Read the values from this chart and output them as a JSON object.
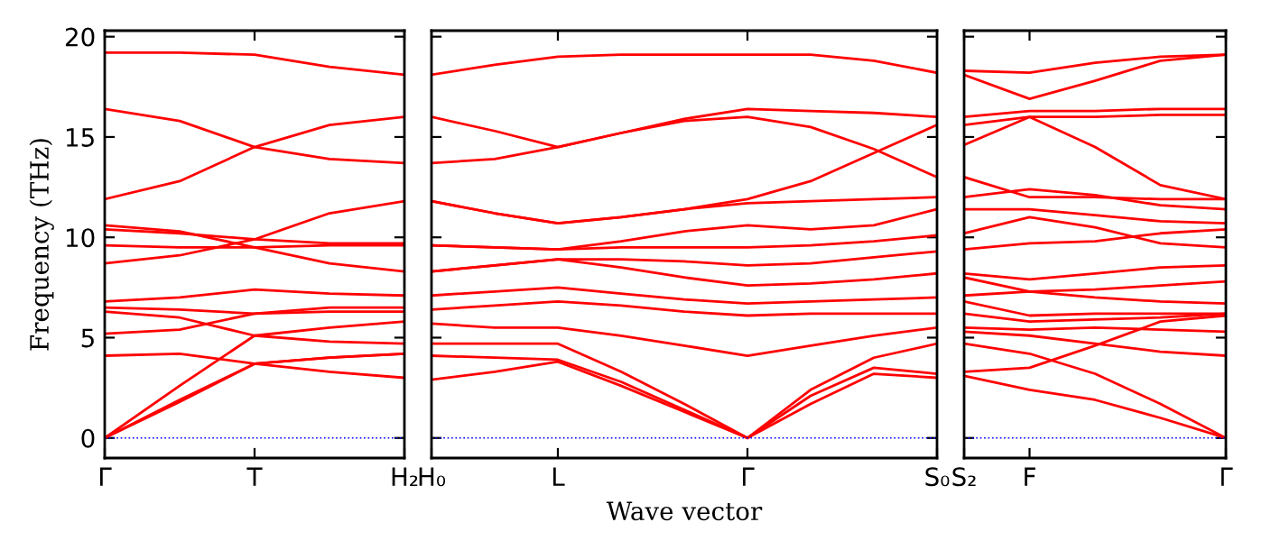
{
  "chart_data": [
    {
      "type": "line",
      "ylabel": "Frequency (THz)",
      "categories": [
        "Γ",
        null,
        "T",
        null,
        "H₂"
      ],
      "ylim": [
        -1,
        20.3
      ],
      "yticks": [
        0,
        5,
        10,
        15,
        20
      ],
      "grid": false,
      "line_style": "solid",
      "marker": "none",
      "ref_lines": [
        {
          "axis": "y",
          "value": 0,
          "label": null,
          "color": "#0000ff",
          "line_style": "dotted"
        }
      ],
      "series": [
        {
          "color": "#ff0000",
          "values": [
            19.2,
            19.2,
            19.1,
            18.5,
            18.1
          ]
        },
        {
          "color": "#ff0000",
          "values": [
            16.4,
            15.8,
            14.5,
            13.9,
            13.7
          ]
        },
        {
          "color": "#ff0000",
          "values": [
            11.9,
            12.8,
            14.5,
            15.6,
            16.0
          ]
        },
        {
          "color": "#ff0000",
          "values": [
            10.6,
            10.3,
            9.5,
            8.7,
            8.3
          ]
        },
        {
          "color": "#ff0000",
          "values": [
            10.4,
            10.2,
            9.9,
            9.7,
            9.7
          ]
        },
        {
          "color": "#ff0000",
          "values": [
            9.6,
            9.5,
            9.5,
            9.6,
            9.6
          ]
        },
        {
          "color": "#ff0000",
          "values": [
            8.7,
            9.1,
            9.9,
            11.2,
            11.8
          ]
        },
        {
          "color": "#ff0000",
          "values": [
            6.8,
            7.0,
            7.4,
            7.2,
            7.1
          ]
        },
        {
          "color": "#ff0000",
          "values": [
            6.5,
            6.4,
            6.2,
            6.5,
            6.5
          ]
        },
        {
          "color": "#ff0000",
          "values": [
            6.3,
            6.0,
            5.1,
            5.5,
            5.8
          ]
        },
        {
          "color": "#ff0000",
          "values": [
            5.2,
            5.4,
            6.2,
            6.3,
            6.3
          ]
        },
        {
          "color": "#ff0000",
          "values": [
            4.1,
            4.2,
            3.7,
            4.0,
            4.2
          ]
        },
        {
          "color": "#ff0000",
          "values": [
            0,
            2.6,
            5.1,
            4.8,
            4.7
          ]
        },
        {
          "color": "#ff0000",
          "values": [
            0,
            1.9,
            3.7,
            4.0,
            4.2
          ]
        },
        {
          "color": "#ff0000",
          "values": [
            0,
            1.8,
            3.7,
            3.3,
            3.0
          ]
        }
      ]
    },
    {
      "type": "line",
      "xlabel": "Wave vector",
      "categories": [
        "H₀",
        null,
        "L",
        null,
        null,
        "Γ",
        null,
        null,
        "S₀"
      ],
      "ylim": [
        -1,
        20.3
      ],
      "yticks": [
        {
          "value": 0,
          "label": null
        },
        {
          "value": 5,
          "label": null
        },
        {
          "value": 10,
          "label": null
        },
        {
          "value": 15,
          "label": null
        },
        {
          "value": 20,
          "label": null
        }
      ],
      "tick_labels": "x",
      "grid": false,
      "line_style": "solid",
      "marker": "none",
      "ref_lines": [
        {
          "axis": "y",
          "value": 0,
          "label": null,
          "color": "#0000ff",
          "line_style": "dotted"
        }
      ],
      "series": [
        {
          "color": "#ff0000",
          "values": [
            18.1,
            18.6,
            19.0,
            19.1,
            19.1,
            19.1,
            19.1,
            18.8,
            18.2
          ]
        },
        {
          "color": "#ff0000",
          "values": [
            16.0,
            15.3,
            14.5,
            15.2,
            15.9,
            16.4,
            16.3,
            16.2,
            16.0
          ]
        },
        {
          "color": "#ff0000",
          "values": [
            13.7,
            13.9,
            14.5,
            15.2,
            15.8,
            16.0,
            15.5,
            14.4,
            13.0
          ]
        },
        {
          "color": "#ff0000",
          "values": [
            11.8,
            11.2,
            10.7,
            11.0,
            11.4,
            11.9,
            12.8,
            14.2,
            15.6
          ]
        },
        {
          "color": "#ff0000",
          "values": [
            11.8,
            11.2,
            10.7,
            11.0,
            11.4,
            11.7,
            11.8,
            11.9,
            12.0
          ]
        },
        {
          "color": "#ff0000",
          "values": [
            9.6,
            9.5,
            9.4,
            9.8,
            10.3,
            10.6,
            10.4,
            10.6,
            11.4
          ]
        },
        {
          "color": "#ff0000",
          "values": [
            9.6,
            9.5,
            9.4,
            9.5,
            9.5,
            9.5,
            9.6,
            9.8,
            10.1
          ]
        },
        {
          "color": "#ff0000",
          "values": [
            8.3,
            8.6,
            8.9,
            8.9,
            8.8,
            8.6,
            8.7,
            9.0,
            9.3
          ]
        },
        {
          "color": "#ff0000",
          "values": [
            8.3,
            8.6,
            8.9,
            8.5,
            8.0,
            7.6,
            7.7,
            7.9,
            8.2
          ]
        },
        {
          "color": "#ff0000",
          "values": [
            7.1,
            7.3,
            7.5,
            7.2,
            6.9,
            6.7,
            6.8,
            6.9,
            7.0
          ]
        },
        {
          "color": "#ff0000",
          "values": [
            6.4,
            6.6,
            6.8,
            6.6,
            6.3,
            6.1,
            6.2,
            6.2,
            6.2
          ]
        },
        {
          "color": "#ff0000",
          "values": [
            5.7,
            5.5,
            5.5,
            5.1,
            4.6,
            4.1,
            4.6,
            5.1,
            5.5
          ]
        },
        {
          "color": "#ff0000",
          "values": [
            4.7,
            4.7,
            4.7,
            3.3,
            1.7,
            0,
            2.4,
            4.0,
            4.7
          ]
        },
        {
          "color": "#ff0000",
          "values": [
            4.1,
            4.0,
            3.9,
            2.8,
            1.4,
            0,
            2.1,
            3.5,
            3.2
          ]
        },
        {
          "color": "#ff0000",
          "values": [
            2.9,
            3.3,
            3.8,
            2.6,
            1.3,
            0,
            1.7,
            3.2,
            3.0
          ]
        }
      ]
    },
    {
      "type": "line",
      "categories": [
        "S₂",
        "F",
        null,
        null,
        "Γ"
      ],
      "ylim": [
        -1,
        20.3
      ],
      "yticks": [
        {
          "value": 0,
          "label": null
        },
        {
          "value": 5,
          "label": null
        },
        {
          "value": 10,
          "label": null
        },
        {
          "value": 15,
          "label": null
        },
        {
          "value": 20,
          "label": null
        }
      ],
      "tick_labels": "x",
      "grid": false,
      "line_style": "solid",
      "marker": "none",
      "ref_lines": [
        {
          "axis": "y",
          "value": 0,
          "label": null,
          "color": "#0000ff",
          "line_style": "dotted"
        }
      ],
      "series": [
        {
          "color": "#ff0000",
          "values": [
            18.3,
            18.2,
            18.7,
            19.0,
            19.1
          ]
        },
        {
          "color": "#ff0000",
          "values": [
            18.1,
            16.9,
            17.8,
            18.8,
            19.1
          ]
        },
        {
          "color": "#ff0000",
          "values": [
            16.0,
            16.3,
            16.3,
            16.4,
            16.4
          ]
        },
        {
          "color": "#ff0000",
          "values": [
            15.6,
            16.0,
            16.0,
            16.1,
            16.1
          ]
        },
        {
          "color": "#ff0000",
          "values": [
            14.6,
            16.0,
            14.5,
            12.6,
            11.9
          ]
        },
        {
          "color": "#ff0000",
          "values": [
            13.0,
            12.0,
            12.0,
            11.9,
            11.9
          ]
        },
        {
          "color": "#ff0000",
          "values": [
            12.0,
            12.4,
            12.1,
            11.6,
            11.4
          ]
        },
        {
          "color": "#ff0000",
          "values": [
            11.4,
            11.4,
            11.1,
            10.8,
            10.7
          ]
        },
        {
          "color": "#ff0000",
          "values": [
            10.2,
            11.0,
            10.5,
            9.7,
            9.5
          ]
        },
        {
          "color": "#ff0000",
          "values": [
            9.4,
            9.7,
            9.8,
            10.2,
            10.4
          ]
        },
        {
          "color": "#ff0000",
          "values": [
            8.2,
            7.9,
            8.2,
            8.5,
            8.6
          ]
        },
        {
          "color": "#ff0000",
          "values": [
            8.0,
            7.3,
            7.4,
            7.6,
            7.8
          ]
        },
        {
          "color": "#ff0000",
          "values": [
            7.1,
            7.3,
            7.0,
            6.8,
            6.7
          ]
        },
        {
          "color": "#ff0000",
          "values": [
            6.8,
            6.1,
            6.2,
            6.2,
            6.2
          ]
        },
        {
          "color": "#ff0000",
          "values": [
            6.2,
            5.8,
            5.9,
            6.0,
            6.2
          ]
        },
        {
          "color": "#ff0000",
          "values": [
            5.5,
            5.4,
            5.5,
            5.4,
            5.3
          ]
        },
        {
          "color": "#ff0000",
          "values": [
            5.3,
            5.1,
            4.7,
            4.3,
            4.1
          ]
        },
        {
          "color": "#ff0000",
          "values": [
            4.7,
            4.2,
            3.2,
            1.7,
            0
          ]
        },
        {
          "color": "#ff0000",
          "values": [
            3.3,
            3.5,
            4.6,
            5.8,
            6.1
          ]
        },
        {
          "color": "#ff0000",
          "values": [
            3.1,
            2.4,
            1.9,
            1.0,
            0
          ]
        }
      ]
    }
  ]
}
